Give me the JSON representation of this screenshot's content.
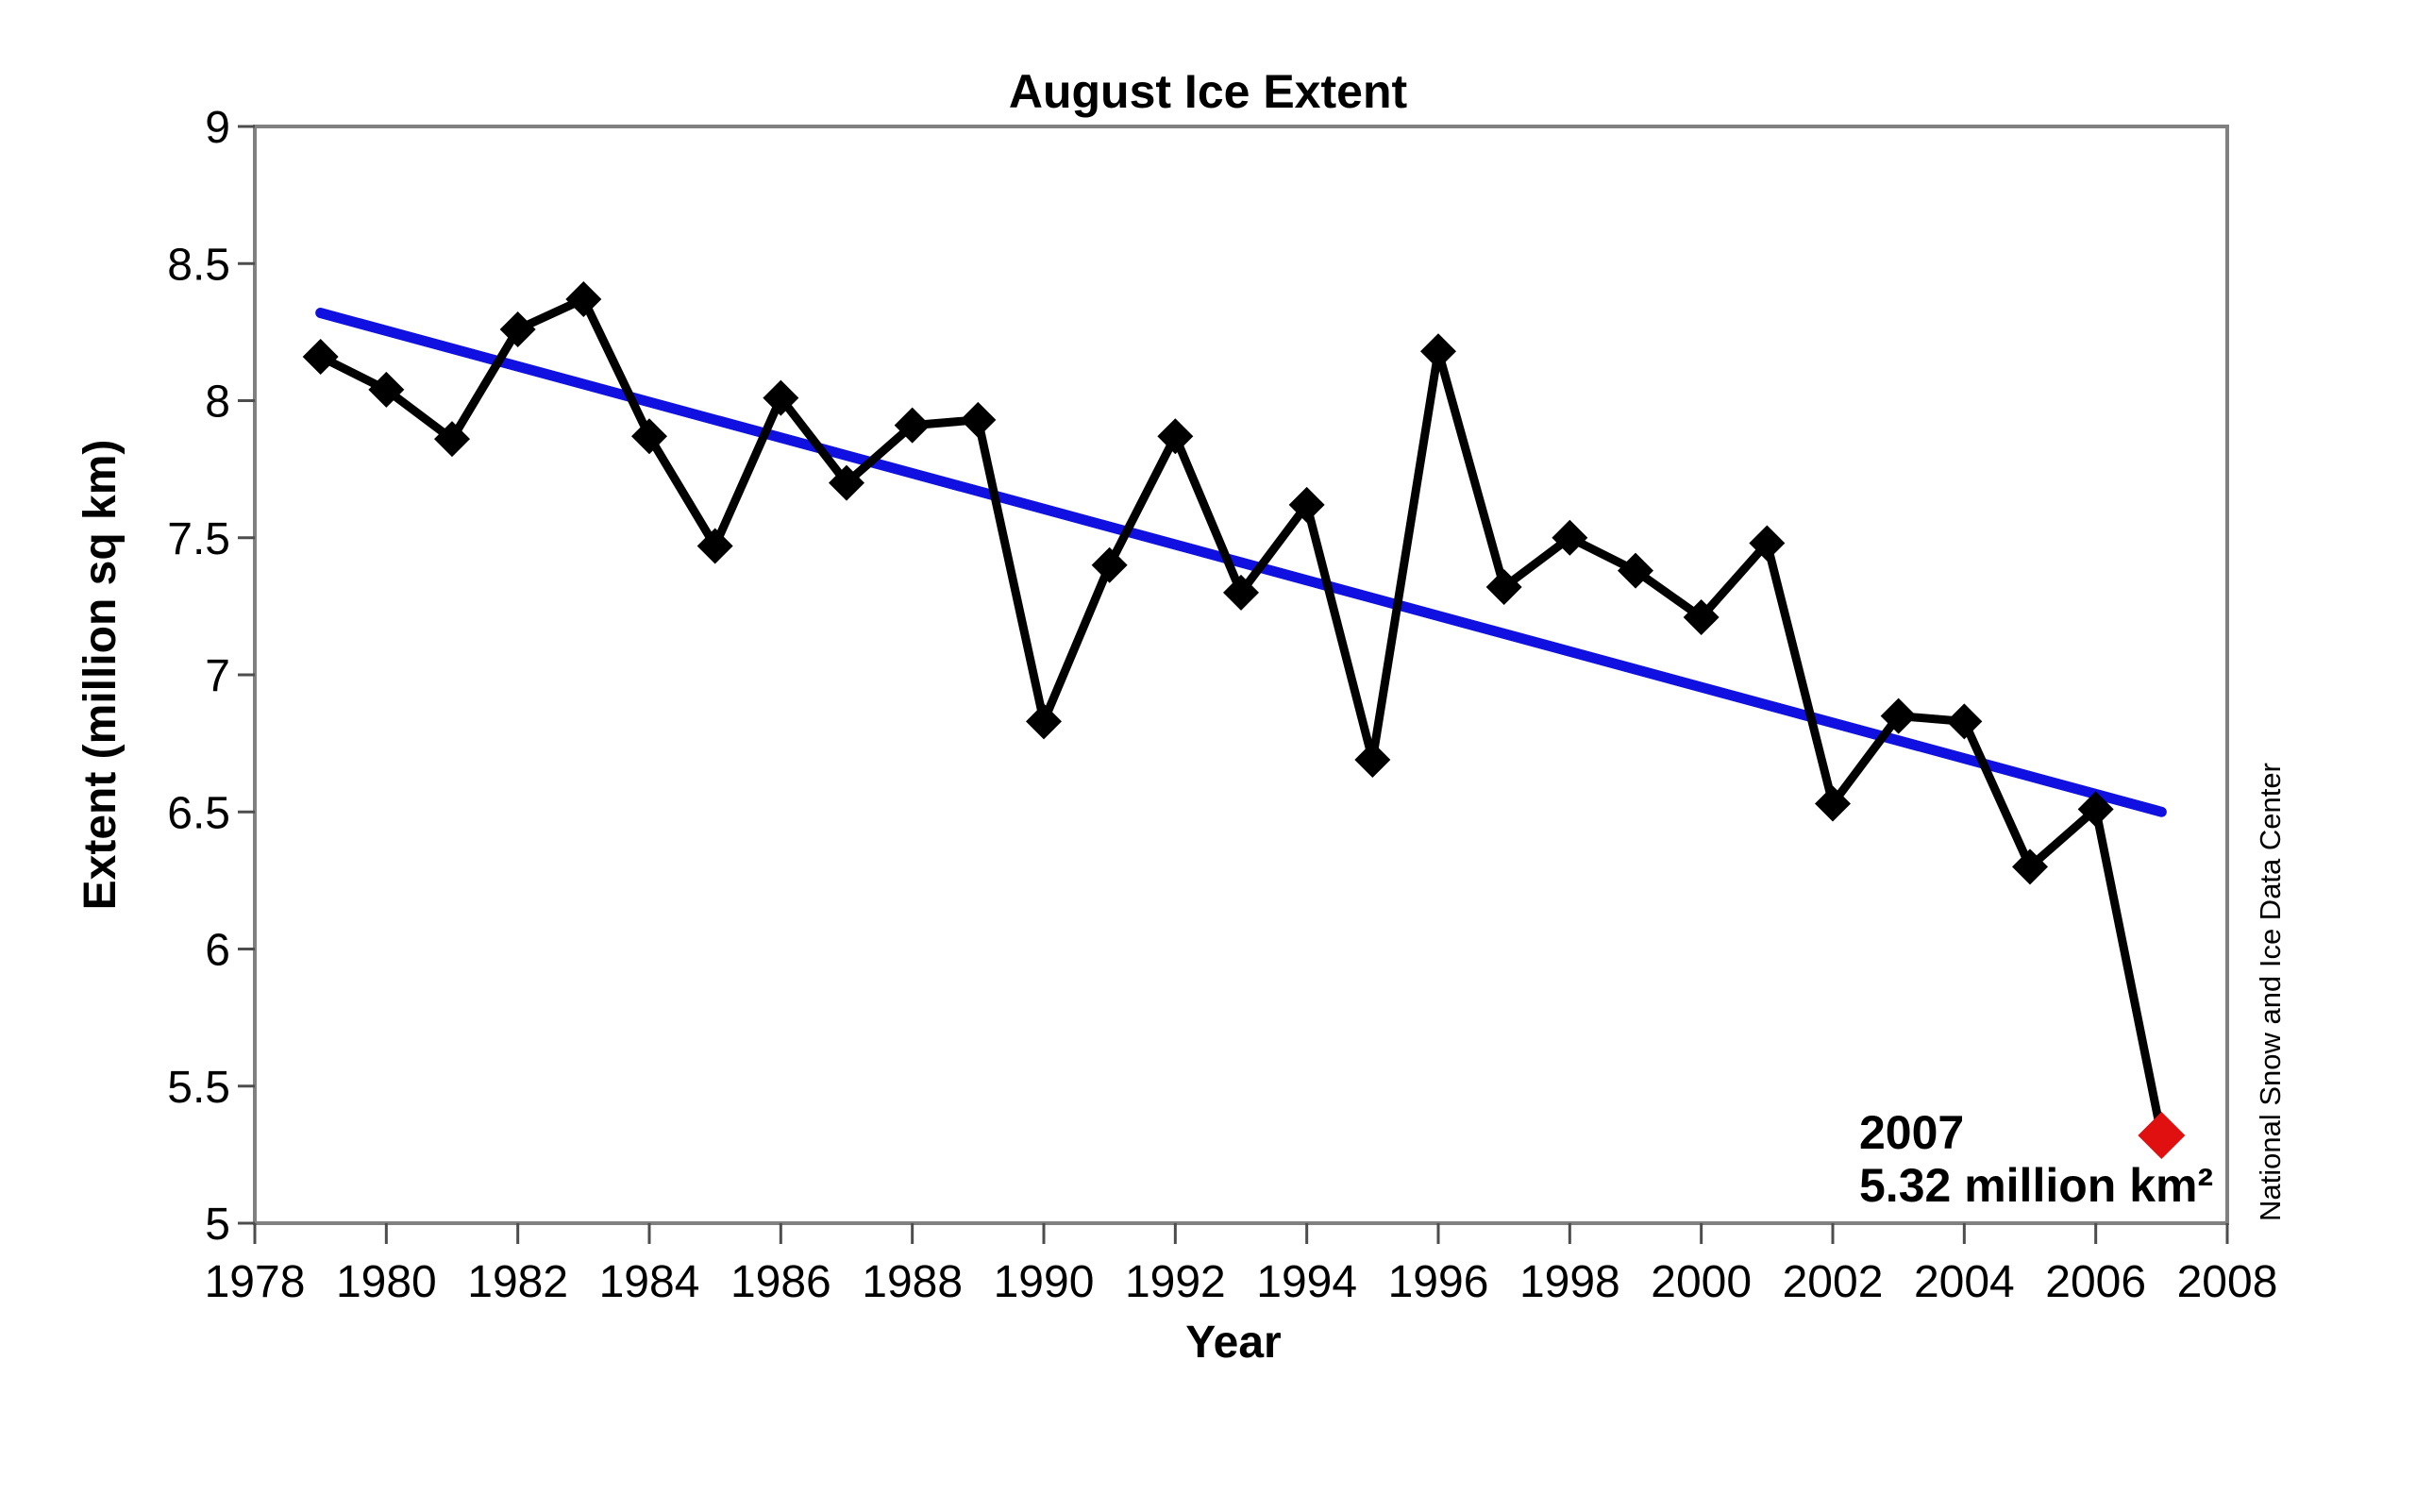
{
  "title": "August Ice Extent",
  "y_axis": {
    "label": "Extent (million sq km)",
    "ticks": [
      "9",
      "8.5",
      "8",
      "7.5",
      "7",
      "6.5",
      "6",
      "5.5",
      "5"
    ]
  },
  "x_axis": {
    "label": "Year",
    "ticks": [
      "1978",
      "1980",
      "1982",
      "1984",
      "1986",
      "1988",
      "1990",
      "1992",
      "1994",
      "1996",
      "1998",
      "2000",
      "2002",
      "2004",
      "2006",
      "2008"
    ]
  },
  "annotation": {
    "year": "2007",
    "value": "5.32 million km²"
  },
  "credit": "National Snow and Ice Data Center",
  "colors": {
    "series": "#000000",
    "trend": "#1010e0",
    "record_marker": "#e01010",
    "plot_border": "#808080",
    "tick": "#4d4d4d"
  },
  "chart_data": {
    "type": "line",
    "title": "August Ice Extent",
    "xlabel": "Year",
    "ylabel": "Extent (million sq km)",
    "xlim": [
      1978,
      2008
    ],
    "ylim": [
      5,
      9
    ],
    "grid": false,
    "legend": "none",
    "series": [
      {
        "name": "August ice extent",
        "marker": "diamond",
        "color": "#000000",
        "x": [
          1979,
          1980,
          1981,
          1982,
          1983,
          1984,
          1985,
          1986,
          1987,
          1988,
          1989,
          1990,
          1991,
          1992,
          1993,
          1994,
          1995,
          1996,
          1997,
          1998,
          1999,
          2000,
          2001,
          2002,
          2003,
          2004,
          2005,
          2006,
          2007
        ],
        "y": [
          8.16,
          8.04,
          7.86,
          8.26,
          8.37,
          7.87,
          7.47,
          8.01,
          7.7,
          7.91,
          7.93,
          6.83,
          7.4,
          7.87,
          7.3,
          7.62,
          6.69,
          8.18,
          7.32,
          7.5,
          7.38,
          7.21,
          7.48,
          6.53,
          6.85,
          6.83,
          6.3,
          6.51,
          5.32
        ]
      },
      {
        "name": "linear trend",
        "type": "trend",
        "color": "#1010e0",
        "x": [
          1979,
          2007
        ],
        "y": [
          8.32,
          6.5
        ]
      }
    ],
    "record_low": {
      "year": 2007,
      "value": 5.32,
      "label": "2007",
      "value_label": "5.32 million km²"
    }
  }
}
